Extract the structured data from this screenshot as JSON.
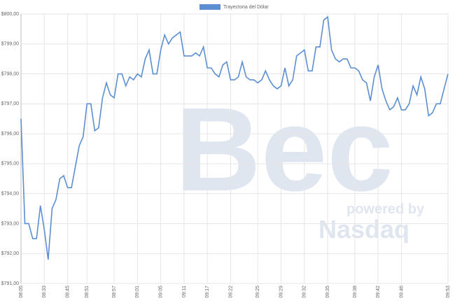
{
  "chart_data": {
    "type": "line",
    "watermark": {
      "brand": "Bec",
      "tagline": "powered by",
      "partner": "Nasdaq"
    },
    "categories": [
      "08:05",
      null,
      null,
      null,
      null,
      null,
      "08:33",
      null,
      null,
      null,
      null,
      null,
      "08:45",
      null,
      null,
      null,
      null,
      "08:51",
      null,
      null,
      null,
      null,
      null,
      null,
      "08:57",
      null,
      null,
      null,
      null,
      null,
      "09:01",
      null,
      null,
      null,
      null,
      null,
      "09:05",
      null,
      null,
      null,
      null,
      null,
      "09:11",
      null,
      null,
      null,
      null,
      null,
      "09:17",
      null,
      null,
      null,
      null,
      null,
      "09:22",
      null,
      null,
      null,
      null,
      null,
      null,
      "09:25",
      null,
      null,
      null,
      null,
      null,
      "09:29",
      null,
      null,
      null,
      null,
      null,
      "09:32",
      null,
      null,
      null,
      null,
      null,
      "09:35",
      null,
      null,
      null,
      null,
      null,
      null,
      "09:38",
      null,
      null,
      null,
      null,
      null,
      "09:42",
      null,
      null,
      null,
      null,
      null,
      "09:46",
      null,
      null,
      null,
      null,
      null,
      null,
      null,
      null,
      null,
      null,
      null,
      "09:53"
    ],
    "series": [
      {
        "name": "Trayectoria del Dólar",
        "color": "#5b8fd1",
        "values": [
          796.5,
          793.0,
          793.0,
          792.5,
          792.5,
          793.6,
          792.8,
          791.8,
          793.5,
          793.8,
          794.5,
          794.6,
          794.2,
          794.2,
          794.9,
          795.6,
          795.9,
          797.0,
          797.0,
          796.1,
          796.2,
          797.2,
          797.7,
          797.3,
          797.2,
          798.0,
          798.0,
          797.6,
          797.9,
          797.8,
          798.0,
          797.9,
          798.5,
          798.8,
          798.0,
          798.0,
          798.8,
          799.3,
          799.0,
          799.2,
          799.3,
          799.4,
          798.6,
          798.6,
          798.6,
          798.7,
          798.6,
          798.9,
          798.2,
          798.2,
          798.0,
          797.9,
          798.3,
          798.4,
          797.8,
          797.8,
          797.9,
          798.4,
          797.9,
          797.8,
          797.8,
          797.7,
          797.8,
          798.1,
          797.8,
          797.6,
          797.5,
          797.6,
          798.2,
          797.6,
          797.8,
          798.6,
          798.7,
          798.8,
          798.1,
          798.1,
          798.9,
          798.9,
          799.8,
          799.9,
          798.8,
          798.5,
          798.4,
          798.5,
          798.5,
          798.2,
          798.2,
          798.1,
          797.8,
          797.7,
          797.1,
          797.9,
          798.3,
          797.5,
          797.1,
          796.8,
          796.9,
          797.2,
          796.8,
          796.8,
          797.0,
          797.6,
          797.3,
          797.9,
          797.5,
          796.6,
          796.7,
          797.0,
          797.0,
          797.5,
          798.0
        ]
      }
    ],
    "ylim": [
      791,
      800
    ],
    "yticks": [
      {
        "value": 791,
        "label": "$791,00"
      },
      {
        "value": 792,
        "label": "$792,00"
      },
      {
        "value": 793,
        "label": "$793,00"
      },
      {
        "value": 794,
        "label": "$794,00"
      },
      {
        "value": 795,
        "label": "$795,00"
      },
      {
        "value": 796,
        "label": "$796,00"
      },
      {
        "value": 797,
        "label": "$797,00"
      },
      {
        "value": 798,
        "label": "$798,00"
      },
      {
        "value": 799,
        "label": "$799,00"
      },
      {
        "value": 800,
        "label": "$800,00"
      }
    ],
    "grid": true,
    "legend": "top"
  }
}
